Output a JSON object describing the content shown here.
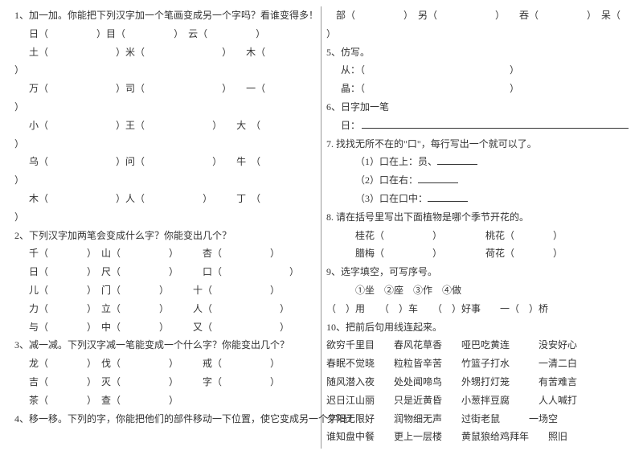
{
  "font_size": 12,
  "text_color": "#333333",
  "divider_color": "#999999",
  "background": "#ffffff",
  "left": {
    "q1": {
      "title": "1、加一加。你能把下列汉字加一个笔画变成另一个字吗？看谁变得多！",
      "row1a": "日（",
      "row1b": "）目（",
      "row1c": "）　云（",
      "row1d": "）",
      "row2a": "土（",
      "row2b": "）米（",
      "row2c": "）　　木（",
      "row2end": "）",
      "row3a": "万（",
      "row3b": "）司（",
      "row3c": "）　　一（",
      "row3end": "）",
      "row4a": "小（",
      "row4b": "）王（",
      "row4c": "）　　大　（",
      "row4end": "）",
      "row5a": "乌（",
      "row5b": "）问（",
      "row5c": "）　　牛　（",
      "row5end": "）",
      "row6a": "木（",
      "row6b": "）人（",
      "row6c": "）　　　丁　（",
      "row6end": "）"
    },
    "q2": {
      "title": "2、下列汉字加两笔会变成什么字？你能变出几个？",
      "r1": "千（　　　　）　山（　　　　　）　　　杏（　　　　　）",
      "r2": "日（　　　　）　尺（　　　　　）　　　口（　　　　　　　）",
      "r3": "儿（　　　　）　门（　　　　）　　　十（　　　　　　）",
      "r4": "力（　　　　）　立（　　　　）　　　人（　　　　　　　）",
      "r5": "与（　　　　）　中（　　　　）　　　又（　　　　　　　）"
    },
    "q3": {
      "title": "3、减一减。下列汉字减一笔能变成一个什么字？你能变出几个？",
      "r1": "龙（　　　　）　伐（　　　　　）　　　戒（　　　　　）",
      "r2": "吉（　　　　）　灭（　　　　　）　　　字（　　　　　）",
      "r3": "茶（　　　　）　查（　　　　　）"
    },
    "q4": {
      "title": "4、移一移。下列的字，你能把他们的部件移动一下位置，使它变成另一个字吗？"
    }
  },
  "right": {
    "cont": "　部（　　　　　）　另（　　　　　　）　　吞（　　　　　）　呆（",
    "contend": "）",
    "q5": {
      "title": "5、仿写。",
      "r1": "从：（　　　　　　　　　　　　　　　）",
      "r2": "晶：（　　　　　　　　　　　　　　　）"
    },
    "q6": {
      "title": "6、日字加一笔",
      "label": "日：",
      "seg": "、"
    },
    "q7": {
      "title": "7. 找找无所不在的\"口\"，每行写出一个就可以了。",
      "r1": "（1）口在上：员、",
      "r2": "（2）口在右：",
      "r3": "（3）口在口中："
    },
    "q8": {
      "title": "8. 请在括号里写出下面植物是哪个季节开花的。",
      "r1": "桂花（　　　　　）　　　　　桃花（　　　　）",
      "r2": "腊梅（　　　　　）　　　　　荷花（　　　　）"
    },
    "q9": {
      "title": "9、选字填空，可写序号。",
      "opts": "①坐　②座　③作　④做",
      "r1": "（　）用　　（　）车　　（　）好事　　一（　）桥"
    },
    "q10": {
      "title": "10、把前后句用线连起来。",
      "r1": "欲穷千里目　　春风花草香　　哑巴吃黄连　　　没安好心",
      "r2": "春眠不觉晓　　粒粒皆辛苦　　竹篮子打水　　　一清二白",
      "r3": "随风潜入夜　　处处闻啼鸟　　外甥打灯笼　　　有苦难言",
      "r4": "迟日江山丽　　只是近黄昏　　小葱拌豆腐　　　人人喊打",
      "r5": "夕阳无限好　　润物细无声　　过街老鼠　　　一场空",
      "r6": "谁知盘中餐　　更上一层楼　　黄鼠狼给鸡拜年　　照旧"
    }
  }
}
